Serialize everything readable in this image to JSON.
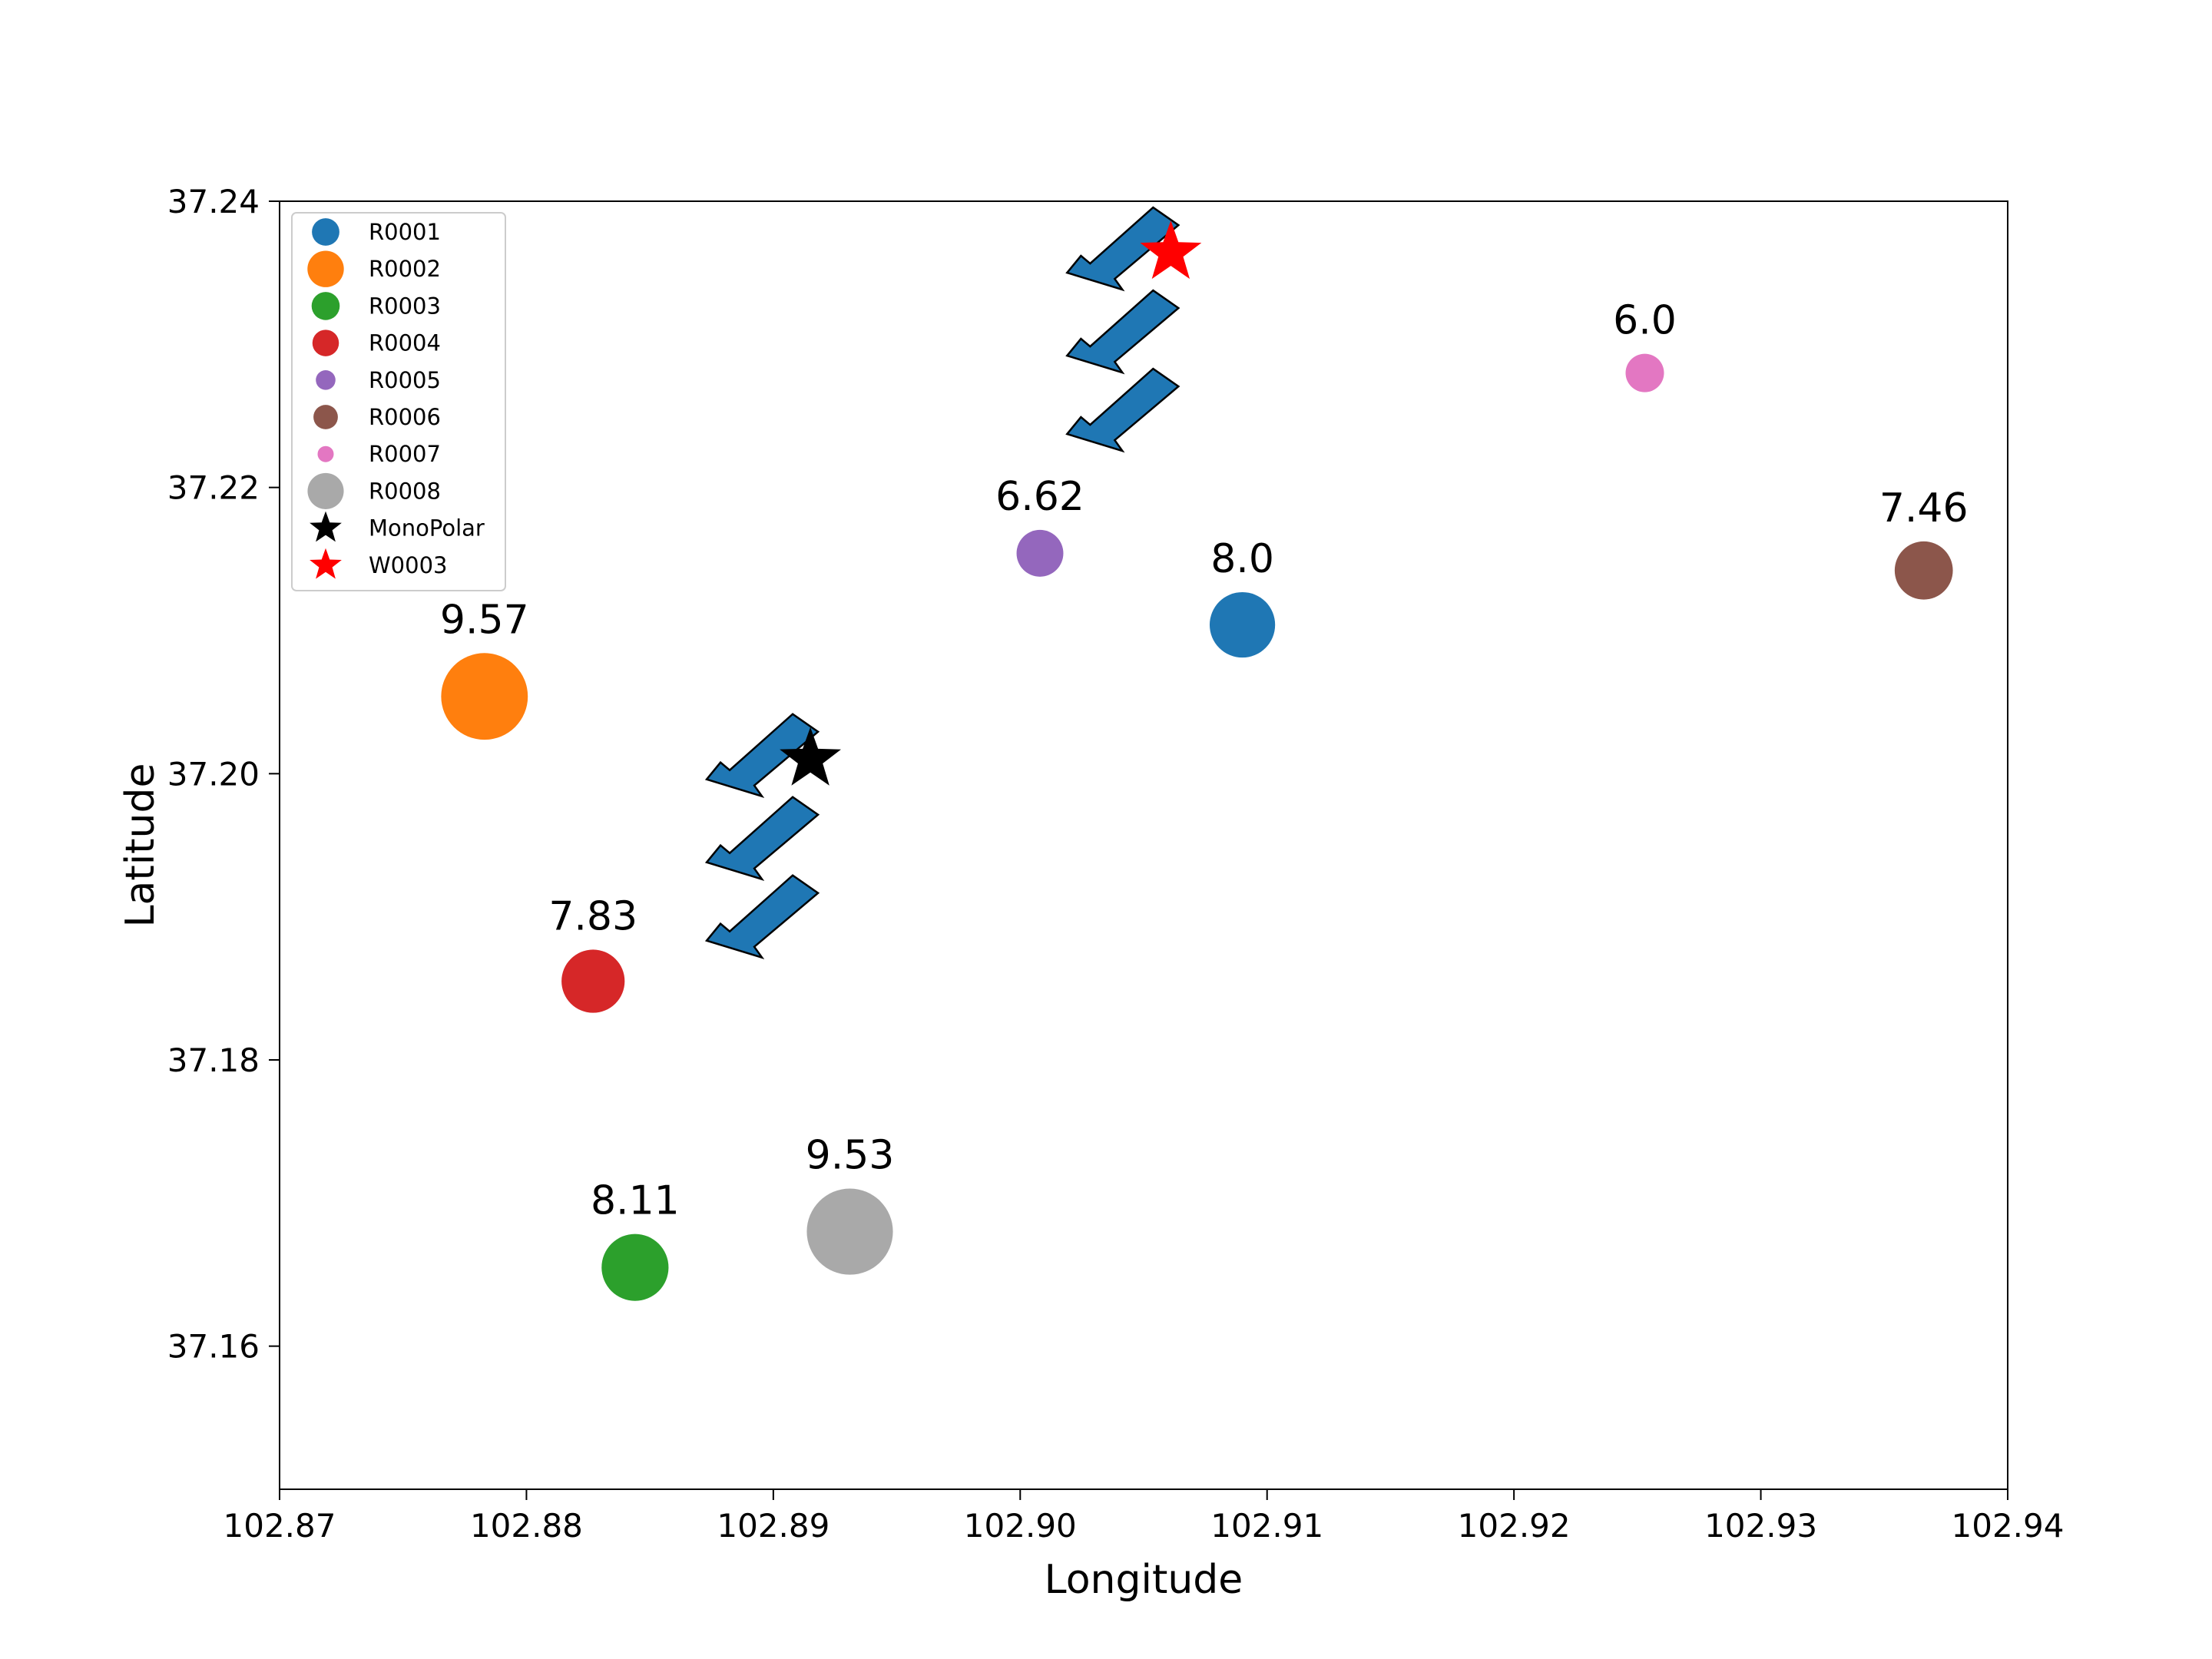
{
  "chart_data": {
    "type": "scatter",
    "xlabel": "Longitude",
    "ylabel": "Latitude",
    "xlim": [
      102.87,
      102.94
    ],
    "ylim": [
      37.15,
      37.24
    ],
    "xticks": [
      102.87,
      102.88,
      102.89,
      102.9,
      102.91,
      102.92,
      102.93,
      102.94
    ],
    "xtick_labels": [
      "102.87",
      "102.88",
      "102.89",
      "102.90",
      "102.91",
      "102.92",
      "102.93",
      "102.94"
    ],
    "yticks": [
      37.16,
      37.18,
      37.2,
      37.22,
      37.24
    ],
    "ytick_labels": [
      "37.16",
      "37.18",
      "37.20",
      "37.22",
      "37.24"
    ],
    "grid": false,
    "legend_position": "top-left",
    "series": [
      {
        "name": "R0001",
        "x": 102.909,
        "y": 37.2104,
        "value": 8.0,
        "label": "8.0",
        "color": "#1f77b4"
      },
      {
        "name": "R0002",
        "x": 102.8783,
        "y": 37.2054,
        "value": 9.57,
        "label": "9.57",
        "color": "#ff7f0e"
      },
      {
        "name": "R0003",
        "x": 102.8844,
        "y": 37.1655,
        "value": 8.11,
        "label": "8.11",
        "color": "#2ca02c"
      },
      {
        "name": "R0004",
        "x": 102.8827,
        "y": 37.1855,
        "value": 7.83,
        "label": "7.83",
        "color": "#d62728"
      },
      {
        "name": "R0005",
        "x": 102.9008,
        "y": 37.2154,
        "value": 6.62,
        "label": "6.62",
        "color": "#9467bd"
      },
      {
        "name": "R0006",
        "x": 102.9366,
        "y": 37.2142,
        "value": 7.46,
        "label": "7.46",
        "color": "#8c564b"
      },
      {
        "name": "R0007",
        "x": 102.9253,
        "y": 37.228,
        "value": 6.0,
        "label": "6.0",
        "color": "#e377c2"
      },
      {
        "name": "R0008",
        "x": 102.8931,
        "y": 37.168,
        "value": 9.53,
        "label": "9.53",
        "color": "#a9a9a9"
      }
    ],
    "stars": [
      {
        "name": "MonoPolar",
        "x": 102.8915,
        "y": 37.201,
        "color": "#000000"
      },
      {
        "name": "W0003",
        "x": 102.9061,
        "y": 37.2364,
        "color": "#ff0000"
      }
    ],
    "arrow_groups": [
      {
        "x": 102.8915,
        "y": 37.201
      },
      {
        "x": 102.9061,
        "y": 37.2364
      }
    ],
    "arrow_color": "#1f77b4"
  }
}
